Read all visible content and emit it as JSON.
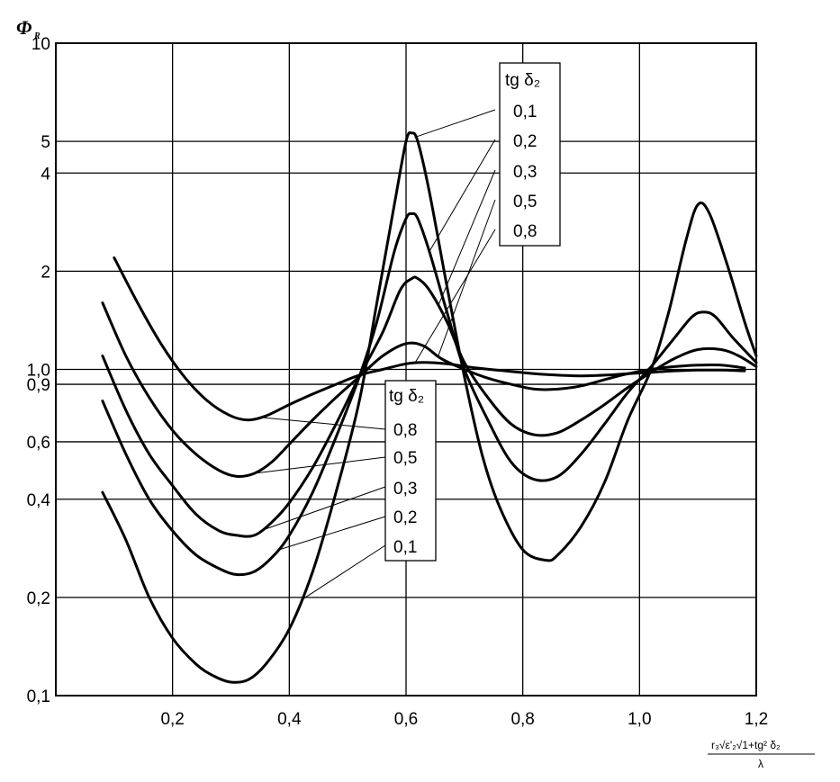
{
  "chart_data": {
    "type": "line",
    "title": "",
    "ylabel": "Φ",
    "ylabel_sub": "R",
    "xlabel_formula": {
      "numerator": "r₃√ε'₂√1+tg² δ₂",
      "denominator": "λ"
    },
    "x_range": [
      0.0,
      1.2
    ],
    "y_scale": "log",
    "y_range": [
      0.1,
      10
    ],
    "grid": true,
    "x_ticks": [
      {
        "value": 0.2,
        "label": "0,2"
      },
      {
        "value": 0.4,
        "label": "0,4"
      },
      {
        "value": 0.6,
        "label": "0,6"
      },
      {
        "value": 0.8,
        "label": "0,8"
      },
      {
        "value": 1.0,
        "label": "1,0"
      },
      {
        "value": 1.2,
        "label": "1,2"
      }
    ],
    "y_ticks": [
      {
        "value": 0.1,
        "label": "0,1"
      },
      {
        "value": 0.2,
        "label": "0,2"
      },
      {
        "value": 0.4,
        "label": "0,4"
      },
      {
        "value": 0.6,
        "label": "0,6"
      },
      {
        "value": 0.9,
        "label": "0,9"
      },
      {
        "value": 1.0,
        "label": "1,0"
      },
      {
        "value": 2,
        "label": "2"
      },
      {
        "value": 4,
        "label": "4"
      },
      {
        "value": 5,
        "label": "5"
      },
      {
        "value": 10,
        "label": "10"
      }
    ],
    "legend_title": "tg δ₂",
    "series": [
      {
        "name": "0,1",
        "x": [
          0.08,
          0.12,
          0.16,
          0.2,
          0.24,
          0.27,
          0.3,
          0.33,
          0.36,
          0.4,
          0.44,
          0.48,
          0.52,
          0.55,
          0.58,
          0.6,
          0.61,
          0.62,
          0.64,
          0.67,
          0.7,
          0.73,
          0.76,
          0.8,
          0.84,
          0.86,
          0.9,
          0.94,
          0.98,
          1.02,
          1.05,
          1.08,
          1.1,
          1.12,
          1.15,
          1.18,
          1.2
        ],
        "y": [
          0.42,
          0.3,
          0.2,
          0.15,
          0.125,
          0.115,
          0.11,
          0.112,
          0.125,
          0.16,
          0.24,
          0.42,
          0.8,
          1.6,
          3.2,
          5.0,
          5.3,
          5.0,
          3.5,
          1.8,
          0.95,
          0.55,
          0.38,
          0.28,
          0.26,
          0.27,
          0.33,
          0.45,
          0.7,
          1.0,
          1.5,
          2.5,
          3.2,
          3.0,
          2.1,
          1.4,
          1.1
        ]
      },
      {
        "name": "0,2",
        "x": [
          0.08,
          0.12,
          0.16,
          0.2,
          0.24,
          0.28,
          0.31,
          0.34,
          0.37,
          0.4,
          0.44,
          0.48,
          0.52,
          0.55,
          0.58,
          0.6,
          0.61,
          0.62,
          0.64,
          0.67,
          0.7,
          0.74,
          0.78,
          0.82,
          0.86,
          0.9,
          0.94,
          0.98,
          1.02,
          1.06,
          1.09,
          1.11,
          1.13,
          1.16,
          1.2
        ],
        "y": [
          0.8,
          0.55,
          0.4,
          0.32,
          0.27,
          0.245,
          0.235,
          0.24,
          0.265,
          0.31,
          0.42,
          0.62,
          0.95,
          1.4,
          2.3,
          2.9,
          3.0,
          2.9,
          2.3,
          1.5,
          1.0,
          0.7,
          0.52,
          0.46,
          0.47,
          0.55,
          0.68,
          0.85,
          1.02,
          1.25,
          1.45,
          1.5,
          1.45,
          1.25,
          1.05
        ]
      },
      {
        "name": "0,3",
        "x": [
          0.08,
          0.12,
          0.16,
          0.2,
          0.24,
          0.28,
          0.31,
          0.34,
          0.37,
          0.4,
          0.44,
          0.48,
          0.52,
          0.56,
          0.59,
          0.61,
          0.62,
          0.64,
          0.67,
          0.7,
          0.74,
          0.78,
          0.82,
          0.86,
          0.9,
          0.94,
          0.98,
          1.02,
          1.06,
          1.1,
          1.14,
          1.17,
          1.2
        ],
        "y": [
          1.1,
          0.75,
          0.55,
          0.44,
          0.36,
          0.32,
          0.31,
          0.31,
          0.34,
          0.39,
          0.5,
          0.68,
          0.95,
          1.3,
          1.75,
          1.9,
          1.9,
          1.75,
          1.4,
          1.05,
          0.82,
          0.68,
          0.63,
          0.64,
          0.7,
          0.78,
          0.88,
          0.98,
          1.08,
          1.15,
          1.15,
          1.1,
          1.02
        ]
      },
      {
        "name": "0,5",
        "x": [
          0.08,
          0.12,
          0.16,
          0.2,
          0.24,
          0.28,
          0.31,
          0.34,
          0.37,
          0.4,
          0.44,
          0.48,
          0.52,
          0.56,
          0.6,
          0.63,
          0.66,
          0.7,
          0.74,
          0.78,
          0.82,
          0.86,
          0.9,
          0.94,
          0.98,
          1.02,
          1.06,
          1.1,
          1.14,
          1.18
        ],
        "y": [
          1.6,
          1.1,
          0.82,
          0.65,
          0.55,
          0.49,
          0.47,
          0.48,
          0.52,
          0.59,
          0.7,
          0.82,
          0.95,
          1.1,
          1.2,
          1.18,
          1.08,
          1.0,
          0.94,
          0.9,
          0.87,
          0.87,
          0.89,
          0.93,
          0.97,
          1.0,
          1.02,
          1.03,
          1.03,
          1.01
        ]
      },
      {
        "name": "0,8",
        "x": [
          0.1,
          0.14,
          0.18,
          0.22,
          0.26,
          0.3,
          0.33,
          0.36,
          0.4,
          0.44,
          0.48,
          0.52,
          0.56,
          0.6,
          0.63,
          0.67,
          0.72,
          0.77,
          0.82,
          0.86,
          0.9,
          0.94,
          0.98,
          1.02,
          1.06,
          1.1,
          1.14,
          1.18
        ],
        "y": [
          2.2,
          1.6,
          1.2,
          0.95,
          0.8,
          0.72,
          0.7,
          0.72,
          0.78,
          0.84,
          0.9,
          0.96,
          1.0,
          1.04,
          1.05,
          1.04,
          1.01,
          0.99,
          0.97,
          0.96,
          0.955,
          0.96,
          0.97,
          0.98,
          0.99,
          0.995,
          0.995,
          0.99
        ]
      }
    ],
    "annotations": {
      "upper_legend": {
        "title": "tg δ₂",
        "labels": [
          "0,1",
          "0,2",
          "0,3",
          "0,5",
          "0,8"
        ]
      },
      "lower_legend": {
        "title": "tg δ₂",
        "labels": [
          "0,8",
          "0,5",
          "0,3",
          "0,2",
          "0,1"
        ]
      }
    }
  }
}
